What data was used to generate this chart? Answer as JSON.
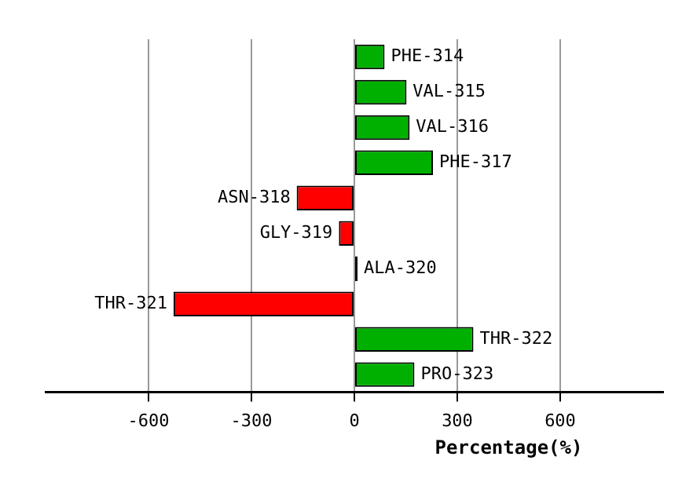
{
  "chart_data": {
    "type": "bar",
    "orientation": "horizontal",
    "xlabel": "Percentage(%)",
    "categories": [
      "PHE-314",
      "VAL-315",
      "VAL-316",
      "PHE-317",
      "ASN-318",
      "GLY-319",
      "ALA-320",
      "THR-321",
      "THR-322",
      "PRO-323"
    ],
    "values": [
      88,
      152,
      161,
      229,
      -168,
      -45,
      2,
      -527,
      347,
      175
    ],
    "colors": [
      "#00b000",
      "#00b000",
      "#00b000",
      "#00b000",
      "#ff0000",
      "#ff0000",
      "#000000",
      "#ff0000",
      "#00b000",
      "#00b000"
    ],
    "xlim": [
      -900,
      900
    ],
    "xticks": [
      -600,
      -300,
      0,
      300,
      600
    ],
    "grid": "x"
  }
}
